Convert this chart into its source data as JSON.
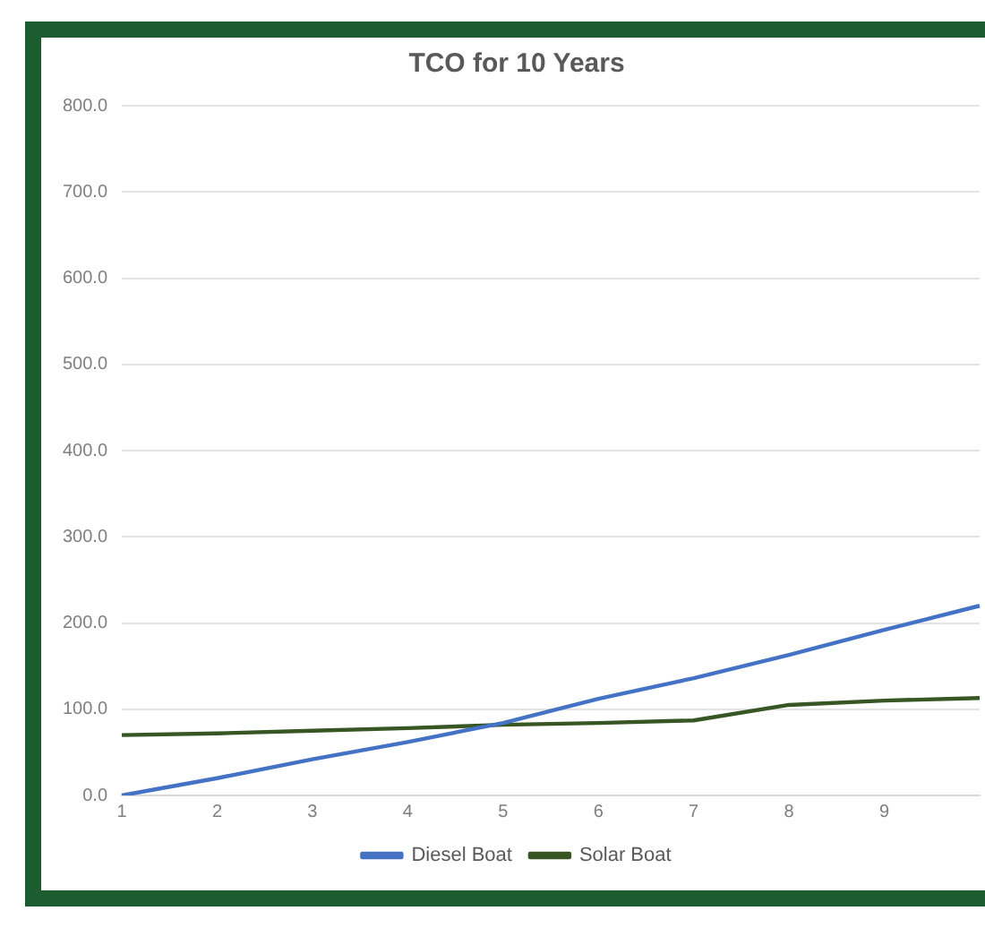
{
  "chart_data": {
    "type": "line",
    "title": "TCO for 10 Years",
    "categories": [
      "1",
      "2",
      "3",
      "4",
      "5",
      "6",
      "7",
      "8",
      "9",
      null
    ],
    "series": [
      {
        "name": "Diesel Boat",
        "color": "#4472c4",
        "values": [
          0,
          20,
          42,
          62,
          84,
          112,
          136,
          163,
          192,
          220
        ]
      },
      {
        "name": "Solar Boat",
        "color": "#375623",
        "values": [
          70,
          72,
          75,
          78,
          82,
          84,
          87,
          105,
          110,
          113
        ]
      }
    ],
    "ylim": [
      0,
      800
    ],
    "yticks": [
      {
        "value": 0,
        "label": "0.0"
      },
      {
        "value": 100,
        "label": "100.0"
      },
      {
        "value": 200,
        "label": "200.0"
      },
      {
        "value": 300,
        "label": "300.0"
      },
      {
        "value": 400,
        "label": "400.0"
      },
      {
        "value": 500,
        "label": "500.0"
      },
      {
        "value": 600,
        "label": "600.0"
      },
      {
        "value": 700,
        "label": "700.0"
      },
      {
        "value": 800,
        "label": "800.0"
      }
    ],
    "grid": "y",
    "legend": "bottom",
    "marker": "none",
    "line_style": "solid"
  }
}
